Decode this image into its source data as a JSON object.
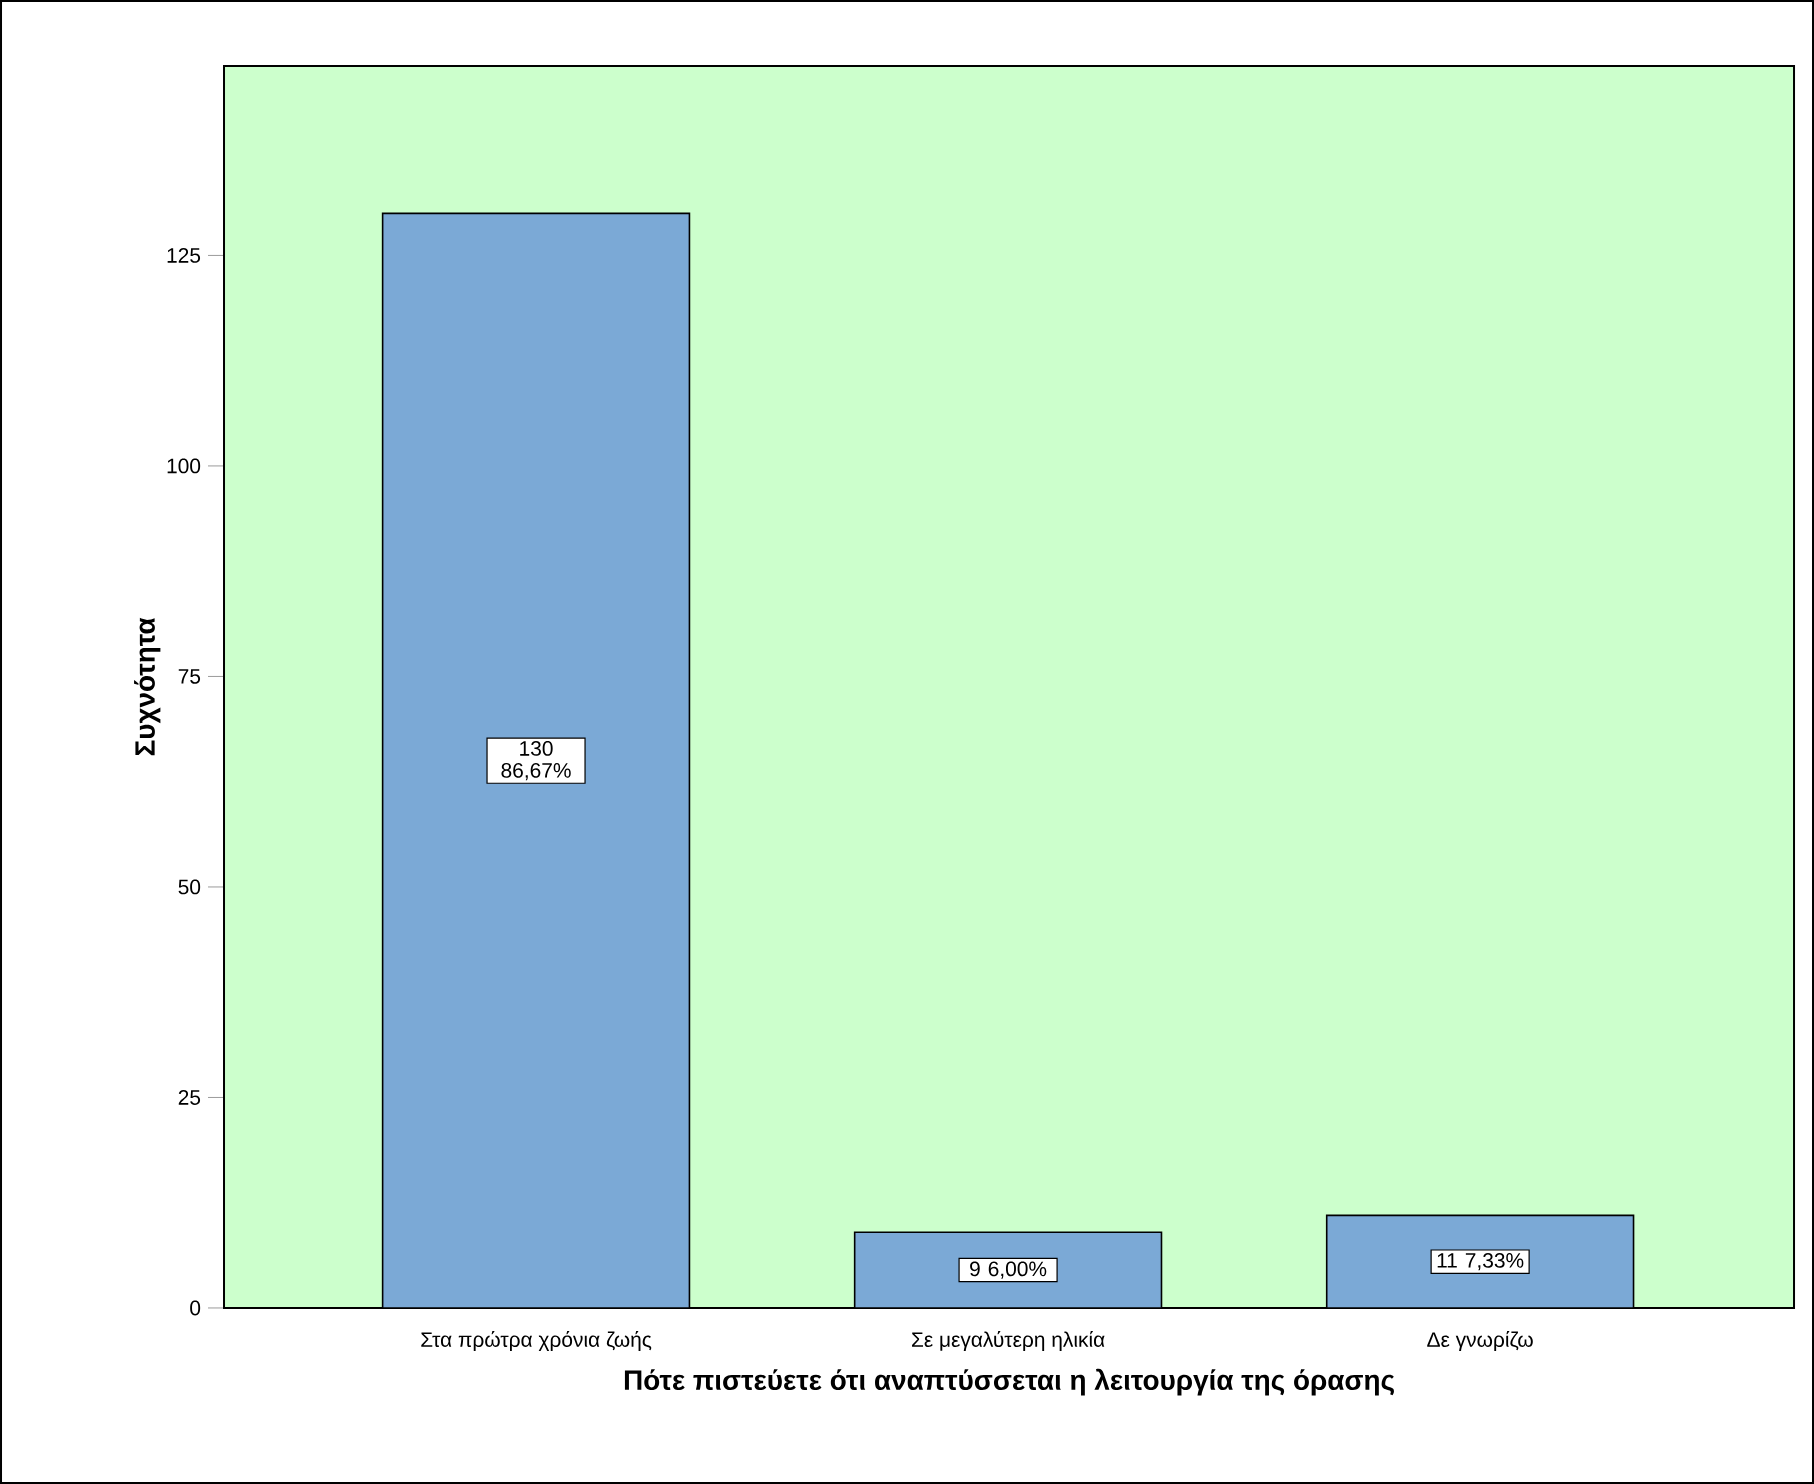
{
  "chart_data": {
    "type": "bar",
    "xlabel": "Πότε πιστεύετε ότι αναπτύσσεται η λειτουργία της όρασης",
    "ylabel": "Συχνότητα",
    "categories": [
      "Στα πρώτρα χρόνια ζωής",
      "Σε μεγαλύτερη ηλικία",
      "Δε γνωρίζω"
    ],
    "values": [
      130,
      9,
      11
    ],
    "color": "#7ba9d6",
    "value_labels": [
      "130 86,67%",
      "9 6,00%",
      "11 7,33%"
    ],
    "ylim": [
      0,
      147.5
    ],
    "yticks": [
      0,
      25,
      50,
      75,
      100,
      125
    ],
    "grid": false
  }
}
